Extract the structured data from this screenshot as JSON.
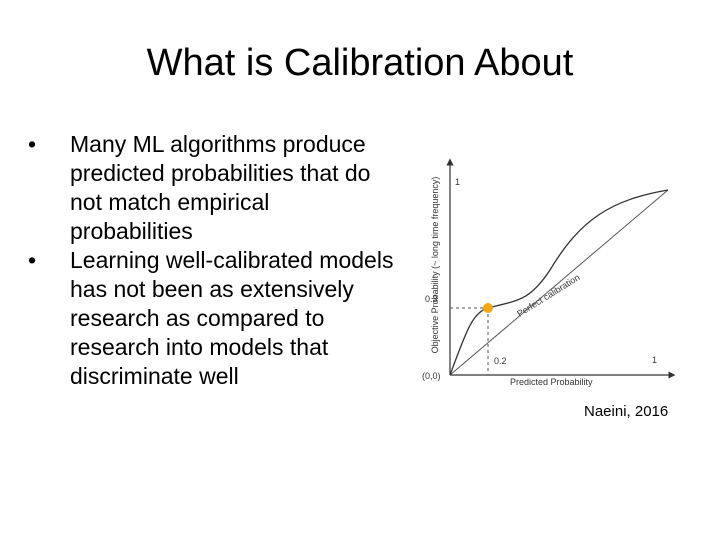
{
  "title": "What is Calibration About",
  "bullets": [
    "Many ML algorithms produce predicted probabilities that do not match empirical probabilities",
    "Learning well-calibrated models has not been as extensively research as compared to research into models that discriminate well"
  ],
  "figure": {
    "y_axis_label": "Objective Probability (~ long time frequency)",
    "x_axis_label": "Predicted Probability",
    "diagonal_label": "Perfect calibration",
    "origin_label": "(0,0)",
    "y_max_label": "1",
    "x_max_label": "1",
    "y_point_label": "0.3",
    "x_point_label": "0.2"
  },
  "caption": "Naeini, 2016"
}
